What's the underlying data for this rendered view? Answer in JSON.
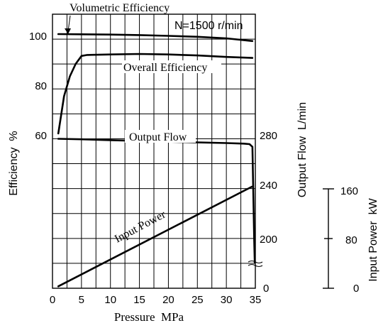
{
  "chart_data": {
    "type": "line",
    "condition_label": "N=1500 r/min",
    "x_axis": {
      "label": "Pressure  MPa",
      "range": [
        0,
        35
      ],
      "ticks": [
        0,
        5,
        10,
        15,
        20,
        25,
        30,
        35
      ]
    },
    "y_axes": [
      {
        "id": "efficiency",
        "label": "Efficiency  %",
        "side": "left",
        "ticks": [
          "60",
          "80",
          "100"
        ]
      },
      {
        "id": "flow",
        "label": "Output Flow  L/min",
        "side": "right",
        "ticks": [
          "0",
          "200",
          "240",
          "280"
        ]
      },
      {
        "id": "power",
        "label": "Input Power  kW",
        "side": "far-right",
        "ticks": [
          "0",
          "80",
          "160"
        ]
      }
    ],
    "grid": true,
    "series": [
      {
        "name": "Volumetric Efficiency",
        "axis": "efficiency",
        "x": [
          1,
          5,
          10,
          15,
          20,
          25,
          30,
          34.5
        ],
        "y": [
          100,
          99.9,
          99.8,
          99.6,
          99.3,
          98.9,
          98.3,
          97.2
        ]
      },
      {
        "name": "Overall Efficiency",
        "axis": "efficiency",
        "x": [
          1,
          2,
          3,
          4,
          5,
          6,
          10,
          15,
          20,
          25,
          30,
          34.5
        ],
        "y": [
          60,
          75,
          83,
          88,
          91.2,
          91.6,
          91.8,
          92,
          91.8,
          91.4,
          90.8,
          90.4
        ]
      },
      {
        "name": "Output Flow",
        "axis": "flow",
        "x": [
          1,
          5,
          10,
          15,
          20,
          25,
          30,
          33,
          34,
          34.5,
          34.8,
          34.9
        ],
        "y": [
          276,
          275.6,
          275,
          274.4,
          273.8,
          273.3,
          272.8,
          272.4,
          272,
          270,
          200,
          185
        ]
      },
      {
        "name": "Input Power",
        "axis": "power",
        "x": [
          1,
          34.4
        ],
        "y": [
          3,
          160
        ]
      }
    ]
  }
}
